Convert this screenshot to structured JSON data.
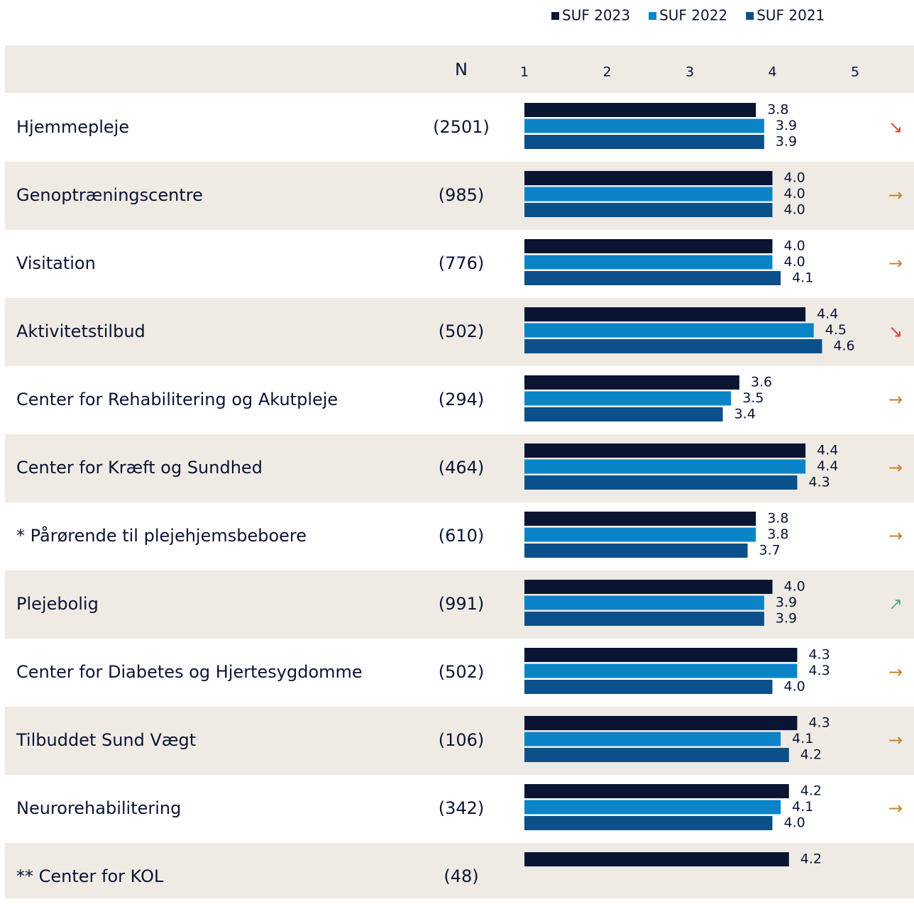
{
  "chart_data": {
    "type": "bar",
    "orientation": "horizontal",
    "n_header": "N",
    "categories": [
      "Hjemmepleje",
      "Genoptræningscentre",
      "Visitation",
      "Aktivitetstilbud",
      "Center for Rehabilitering og Akutpleje",
      "Center for Kræft og Sundhed",
      "* Pårørende til plejehjemsbeboere",
      "Plejebolig",
      "Center for Diabetes og Hjertesygdomme",
      "Tilbuddet Sund Vægt",
      "Neurorehabilitering",
      "** Center for KOL"
    ],
    "n": [
      "(2501)",
      "(985)",
      "(776)",
      "(502)",
      "(294)",
      "(464)",
      "(610)",
      "(991)",
      "(502)",
      "(106)",
      "(342)",
      "(48)"
    ],
    "trend": [
      "↘",
      "→",
      "→",
      "↘",
      "→",
      "→",
      "→",
      "↗",
      "→",
      "→",
      "→",
      null
    ],
    "trend_colors": {
      "↘": "#e5403c",
      "→": "#c8812a",
      "↗": "#5aab8a"
    },
    "series": [
      {
        "name": "SUF 2023",
        "color": "#0a1433",
        "values": [
          3.8,
          4,
          4,
          4.4,
          3.6,
          4.4,
          3.8,
          4,
          4.3,
          4.3,
          4.2,
          4.2
        ],
        "value_labels": [
          "3.8",
          "4.0",
          "4.0",
          "4.4",
          "3.6",
          "4.4",
          "3.8",
          "4.0",
          "4.3",
          "4.3",
          "4.2",
          "4.2"
        ]
      },
      {
        "name": "SUF 2022",
        "color": "#0a84c6",
        "values": [
          3.9,
          4,
          4,
          4.5,
          3.5,
          4.4,
          3.8,
          3.9,
          4.3,
          4.1,
          4.1,
          null
        ],
        "value_labels": [
          "3.9",
          "4.0",
          "4.0",
          "4.5",
          "3.5",
          "4.4",
          "3.8",
          "3.9",
          "4.3",
          "4.1",
          "4.1",
          null
        ]
      },
      {
        "name": "SUF 2021",
        "color": "#0b5088",
        "values": [
          3.9,
          4,
          4.1,
          4.6,
          3.4,
          4.3,
          3.7,
          3.9,
          4,
          4.2,
          4,
          null
        ],
        "value_labels": [
          "3.9",
          "4.0",
          "4.1",
          "4.6",
          "3.4",
          "4.3",
          "3.7",
          "3.9",
          "4.0",
          "4.2",
          "4.0",
          null
        ]
      }
    ],
    "xlim": [
      1,
      5
    ],
    "xticks": [
      1,
      2,
      3,
      4,
      5
    ],
    "grid": false
  }
}
